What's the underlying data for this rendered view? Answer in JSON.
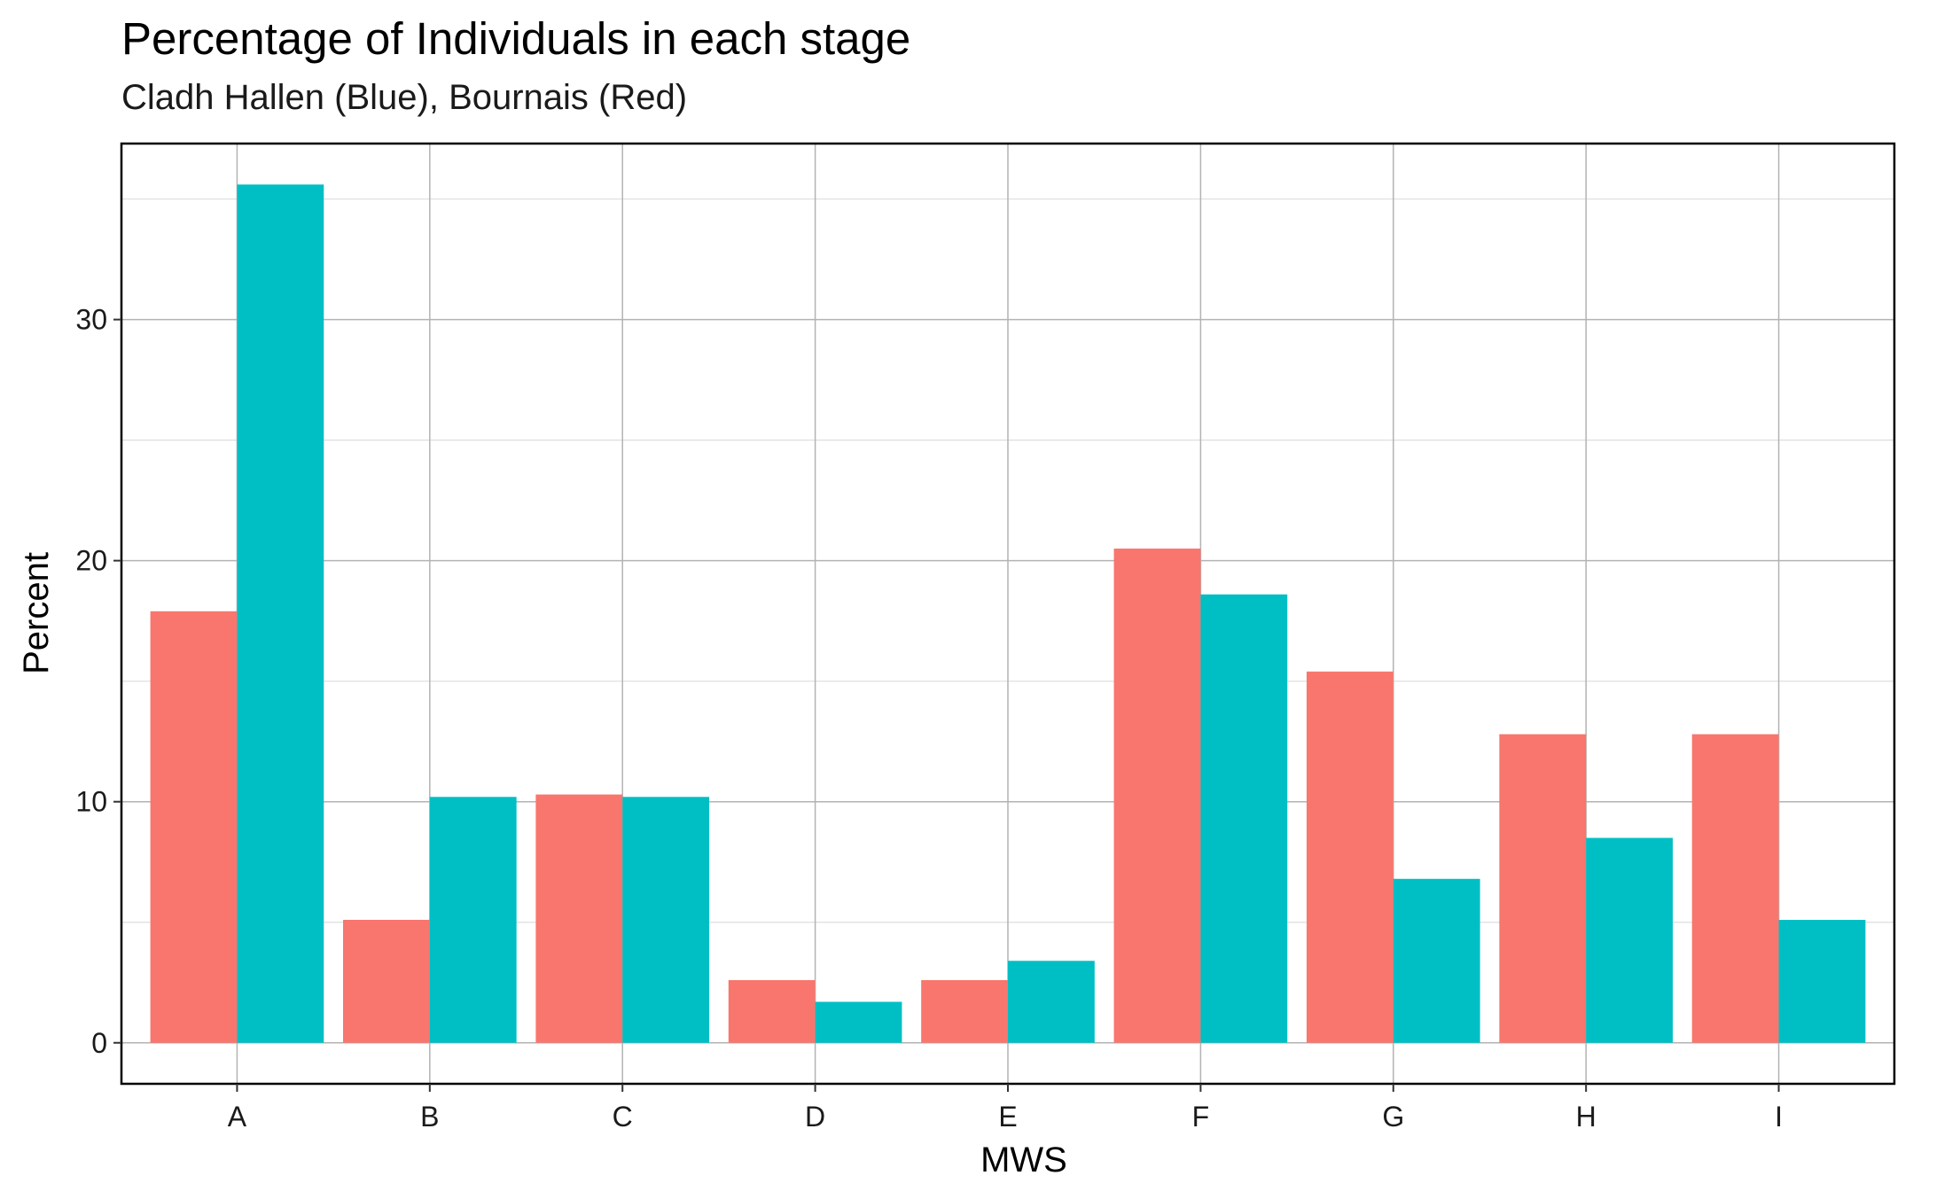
{
  "chart_data": {
    "type": "bar",
    "title": "Percentage of Individuals in each stage",
    "subtitle": "Cladh Hallen (Blue), Bournais (Red)",
    "xlabel": "MWS",
    "ylabel": "Percent",
    "categories": [
      "A",
      "B",
      "C",
      "D",
      "E",
      "F",
      "G",
      "H",
      "I"
    ],
    "series": [
      {
        "color": "#F8766D",
        "values": [
          17.9,
          5.1,
          10.3,
          2.6,
          2.6,
          20.5,
          15.4,
          12.8,
          12.8
        ]
      },
      {
        "color": "#00BFC4",
        "values": [
          35.6,
          10.2,
          10.2,
          1.7,
          3.4,
          18.6,
          6.8,
          8.5,
          5.1
        ]
      }
    ],
    "ylim": [
      -1.7,
      37.3
    ],
    "yticks": [
      0,
      10,
      20,
      30
    ],
    "grid": true,
    "legend": "none"
  }
}
